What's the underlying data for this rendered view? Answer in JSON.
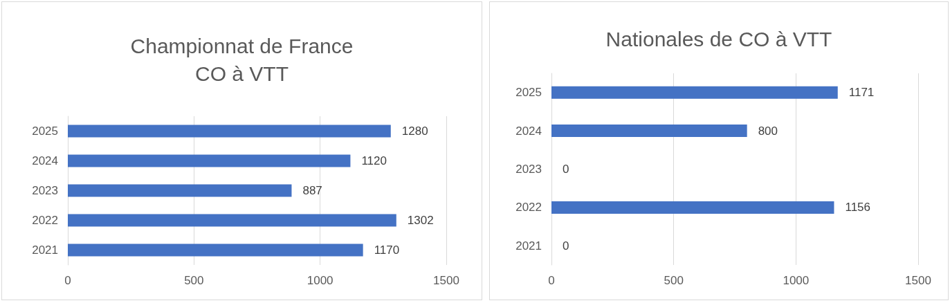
{
  "chart_data": [
    {
      "type": "bar",
      "title": "Championnat de France\nCO à VTT",
      "orientation": "horizontal",
      "categories": [
        "2025",
        "2024",
        "2023",
        "2022",
        "2021"
      ],
      "values": [
        1280,
        1120,
        887,
        1302,
        1170
      ],
      "color": "#4472c4",
      "xlim": [
        0,
        1500
      ],
      "xticks": [
        0,
        500,
        1000,
        1500
      ],
      "grid": "x",
      "data_labels": true
    },
    {
      "type": "bar",
      "title": "Nationales de CO à VTT",
      "orientation": "horizontal",
      "categories": [
        "2025",
        "2024",
        "2023",
        "2022",
        "2021"
      ],
      "values": [
        1171,
        800,
        0,
        1156,
        0
      ],
      "color": "#4472c4",
      "xlim": [
        0,
        1500
      ],
      "xticks": [
        0,
        500,
        1000,
        1500
      ],
      "grid": "x",
      "data_labels": true
    }
  ]
}
